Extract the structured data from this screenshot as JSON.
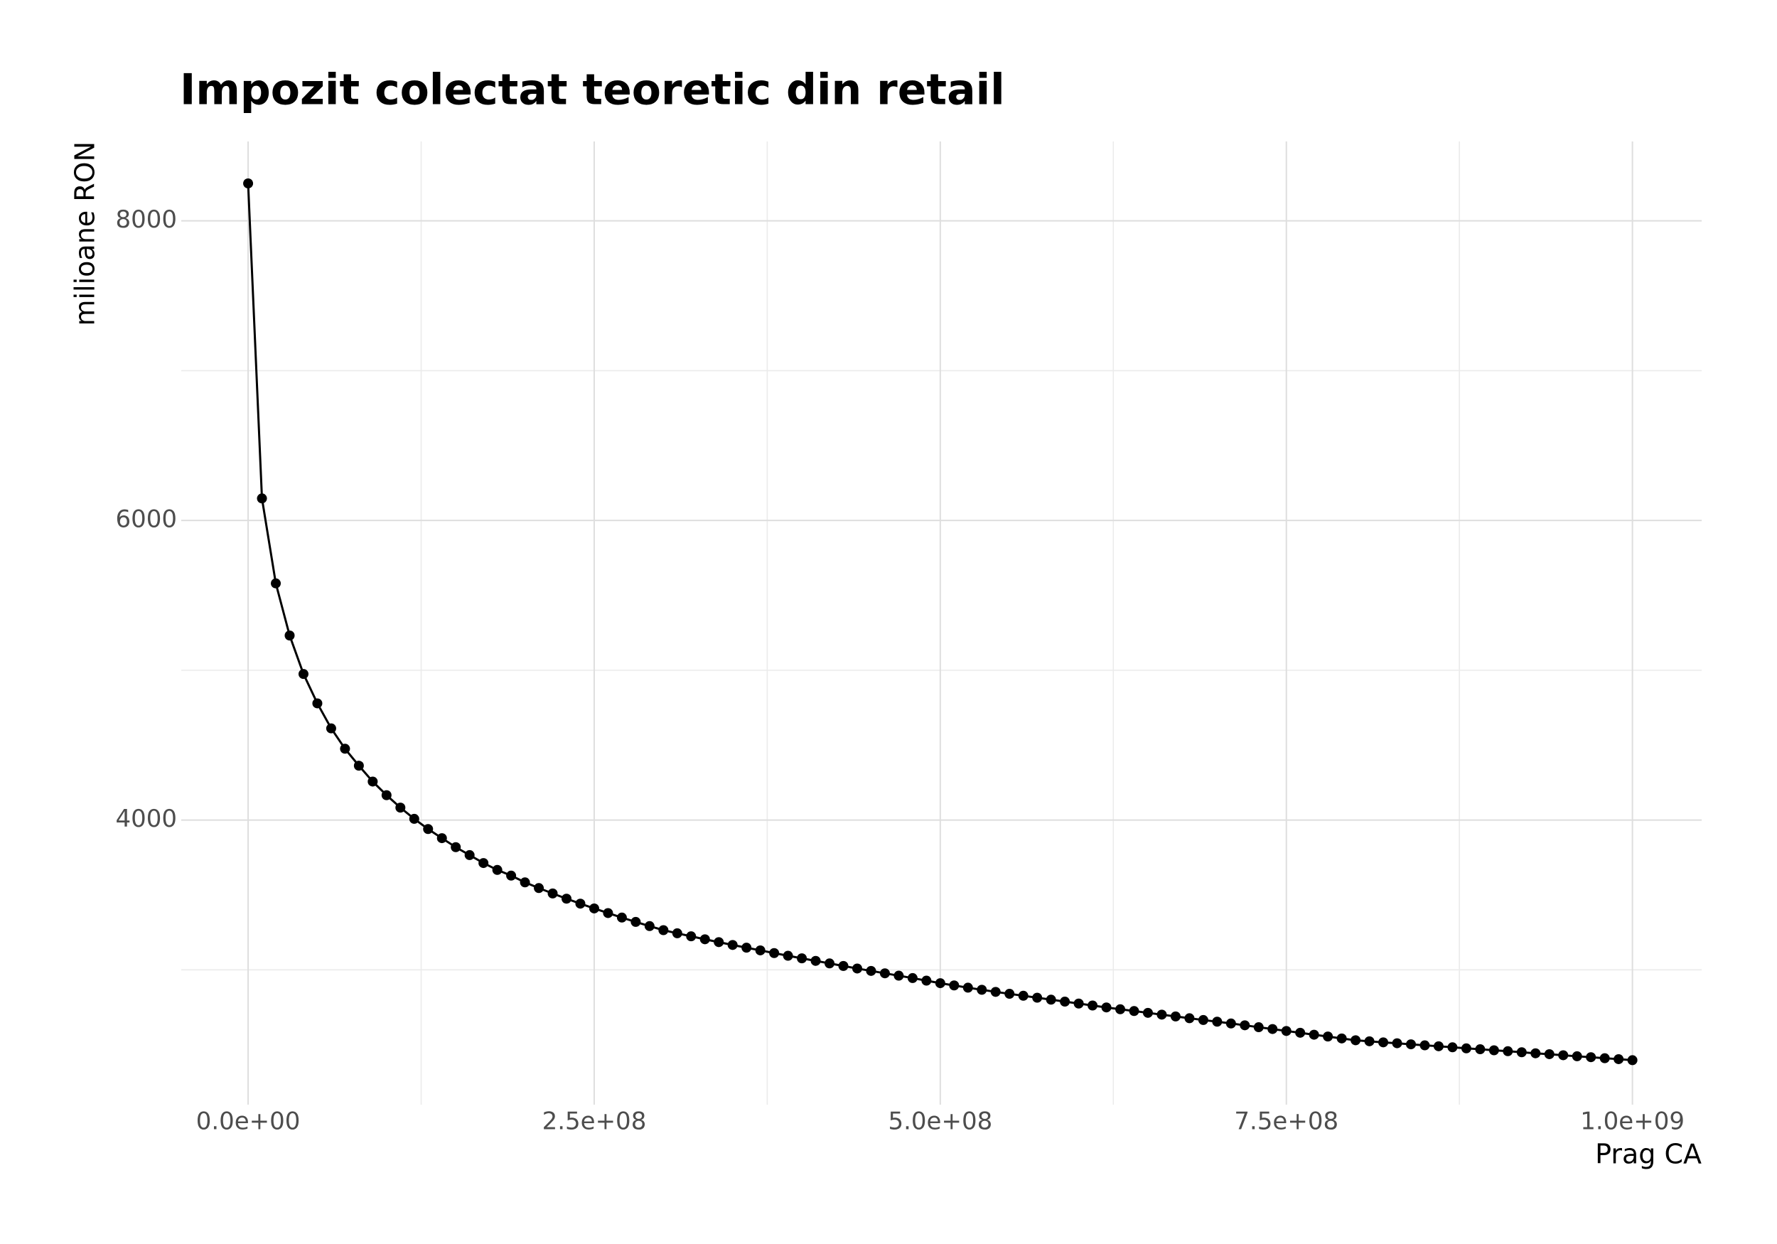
{
  "chart_data": {
    "type": "line",
    "title": "Impozit colectat teoretic din retail",
    "x_label": "Prag CA",
    "y_label": "milioane RON",
    "color": "#000000",
    "grid": true,
    "markers": true,
    "x": [
      0,
      10000000,
      20000000,
      30000000,
      40000000,
      50000000,
      60000000,
      70000000,
      80000000,
      90000000,
      100000000,
      110000000,
      120000000,
      130000000,
      140000000,
      150000000,
      160000000,
      170000000,
      180000000,
      190000000,
      200000000,
      210000000,
      220000000,
      230000000,
      240000000,
      250000000,
      260000000,
      270000000,
      280000000,
      290000000,
      300000000,
      310000000,
      320000000,
      330000000,
      340000000,
      350000000,
      360000000,
      370000000,
      380000000,
      390000000,
      400000000,
      410000000,
      420000000,
      430000000,
      440000000,
      450000000,
      460000000,
      470000000,
      480000000,
      490000000,
      500000000,
      510000000,
      520000000,
      530000000,
      540000000,
      550000000,
      560000000,
      570000000,
      580000000,
      590000000,
      600000000,
      610000000,
      620000000,
      630000000,
      640000000,
      650000000,
      660000000,
      670000000,
      680000000,
      690000000,
      700000000,
      710000000,
      720000000,
      730000000,
      740000000,
      750000000,
      760000000,
      770000000,
      780000000,
      790000000,
      800000000,
      810000000,
      820000000,
      830000000,
      840000000,
      850000000,
      860000000,
      870000000,
      880000000,
      890000000,
      900000000,
      910000000,
      920000000,
      930000000,
      940000000,
      950000000,
      960000000,
      970000000,
      980000000,
      990000000,
      1000000000
    ],
    "values": [
      8250,
      6147,
      5580,
      5232,
      4975,
      4779,
      4612,
      4476,
      4363,
      4257,
      4166,
      4083,
      4008,
      3940,
      3879,
      3819,
      3766,
      3713,
      3667,
      3629,
      3584,
      3546,
      3510,
      3475,
      3442,
      3410,
      3379,
      3349,
      3320,
      3292,
      3265,
      3244,
      3224,
      3204,
      3185,
      3166,
      3148,
      3130,
      3112,
      3094,
      3077,
      3060,
      3043,
      3026,
      3009,
      2993,
      2977,
      2961,
      2945,
      2928,
      2911,
      2896,
      2881,
      2867,
      2853,
      2840,
      2827,
      2814,
      2801,
      2788,
      2775,
      2762,
      2749,
      2737,
      2725,
      2713,
      2701,
      2689,
      2677,
      2665,
      2654,
      2642,
      2630,
      2617,
      2605,
      2592,
      2580,
      2567,
      2555,
      2542,
      2530,
      2523,
      2516,
      2510,
      2503,
      2496,
      2490,
      2483,
      2476,
      2470,
      2463,
      2457,
      2450,
      2443,
      2437,
      2430,
      2423,
      2417,
      2410,
      2404,
      2397
    ],
    "xlim": [
      -48300000,
      1050000000
    ],
    "ylim": [
      2100,
      8530
    ],
    "xticks": [
      {
        "value": 0,
        "label": "0.0e+00"
      },
      {
        "value": 250000000,
        "label": "2.5e+08"
      },
      {
        "value": 500000000,
        "label": "5.0e+08"
      },
      {
        "value": 750000000,
        "label": "7.5e+08"
      },
      {
        "value": 1000000000,
        "label": "1.0e+09"
      }
    ],
    "xminor": [
      125000000,
      375000000,
      625000000,
      875000000
    ],
    "yticks": [
      4000,
      6000,
      8000
    ],
    "yminor": [
      3000,
      5000,
      7000
    ]
  }
}
